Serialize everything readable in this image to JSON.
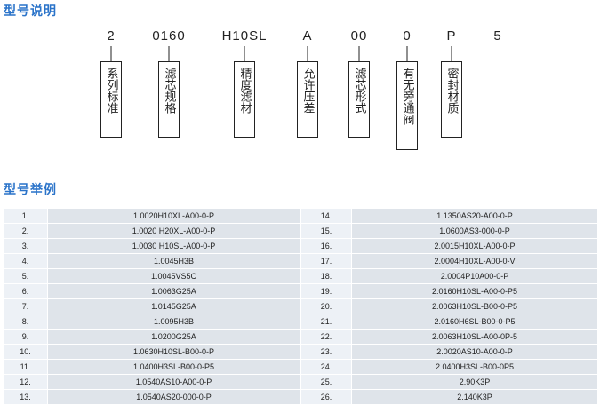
{
  "headings": {
    "explanation": "型号说明",
    "examples": "型号举例"
  },
  "code_parts": [
    "2",
    "0160",
    "H10SL",
    "A",
    "00",
    "0",
    "P",
    "5"
  ],
  "descriptions": [
    "系列标准",
    "滤芯规格",
    "精度滤材",
    "允许压差",
    "滤芯形式",
    "有无旁通阀",
    "密封材质"
  ],
  "examples": {
    "left": [
      {
        "no": "1.",
        "code": "1.0020H10XL-A00-0-P"
      },
      {
        "no": "2.",
        "code": "1.0020 H20XL-A00-0-P"
      },
      {
        "no": "3.",
        "code": "1.0030 H10SL-A00-0-P"
      },
      {
        "no": "4.",
        "code": "1.0045H3B"
      },
      {
        "no": "5.",
        "code": "1.0045VS5C"
      },
      {
        "no": "6.",
        "code": "1.0063G25A"
      },
      {
        "no": "7.",
        "code": "1.0145G25A"
      },
      {
        "no": "8.",
        "code": "1.0095H3B"
      },
      {
        "no": "9.",
        "code": "1.0200G25A"
      },
      {
        "no": "10.",
        "code": "1.0630H10SL-B00-0-P"
      },
      {
        "no": "11.",
        "code": "1.0400H3SL-B00-0-P5"
      },
      {
        "no": "12.",
        "code": "1.0540AS10-A00-0-P"
      },
      {
        "no": "13.",
        "code": "1.0540AS20-000-0-P"
      }
    ],
    "right": [
      {
        "no": "14.",
        "code": "1.1350AS20-A00-0-P"
      },
      {
        "no": "15.",
        "code": "1.0600AS3-000-0-P"
      },
      {
        "no": "16.",
        "code": "2.0015H10XL-A00-0-P"
      },
      {
        "no": "17.",
        "code": "2.0004H10XL-A00-0-V"
      },
      {
        "no": "18.",
        "code": "2.0004P10A00-0-P"
      },
      {
        "no": "19.",
        "code": "2.0160H10SL-A00-0-P5"
      },
      {
        "no": "20.",
        "code": "2.0063H10SL-B00-0-P5"
      },
      {
        "no": "21.",
        "code": "2.0160H6SL-B00-0-P5"
      },
      {
        "no": "22.",
        "code": "2.0063H10SL-A00-0P-5"
      },
      {
        "no": "23.",
        "code": "2.0020AS10-A00-0-P"
      },
      {
        "no": "24.",
        "code": "2.0400H3SL-B00-0P5"
      },
      {
        "no": "25.",
        "code": "2.90K3P"
      },
      {
        "no": "26.",
        "code": "2.140K3P"
      }
    ]
  }
}
